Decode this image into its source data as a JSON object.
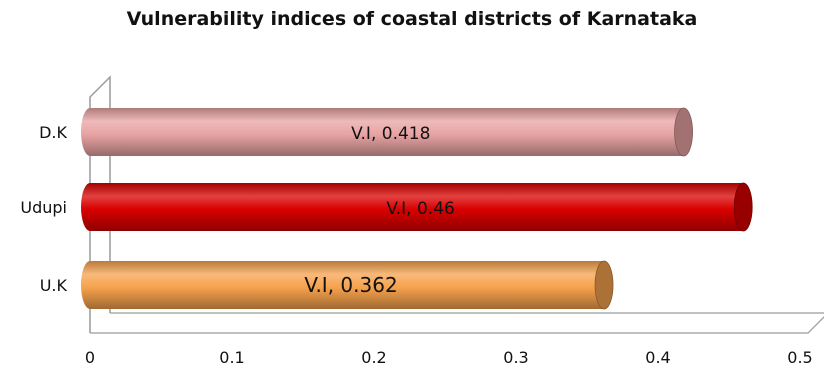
{
  "chart_data": {
    "type": "bar",
    "orientation": "horizontal",
    "style": "3d-cylinder",
    "title": "Vulnerability indices of coastal districts of Karnataka",
    "xlabel": "",
    "ylabel": "",
    "categories": [
      "D.K",
      "Udupi",
      "U.K"
    ],
    "series": [
      {
        "values": [
          0.418,
          0.46,
          0.362
        ],
        "data_labels": [
          "V.I, 0.418",
          "V.I, 0.46",
          "V.I, 0.362"
        ],
        "colors": [
          "#e8a3a3",
          "#d90000",
          "#f6a24d"
        ]
      }
    ],
    "xlim": [
      0,
      0.5
    ],
    "xticks": [
      "0",
      "0.1",
      "0.2",
      "0.3",
      "0.4",
      "0.5"
    ],
    "grid": false,
    "legend": "none"
  }
}
